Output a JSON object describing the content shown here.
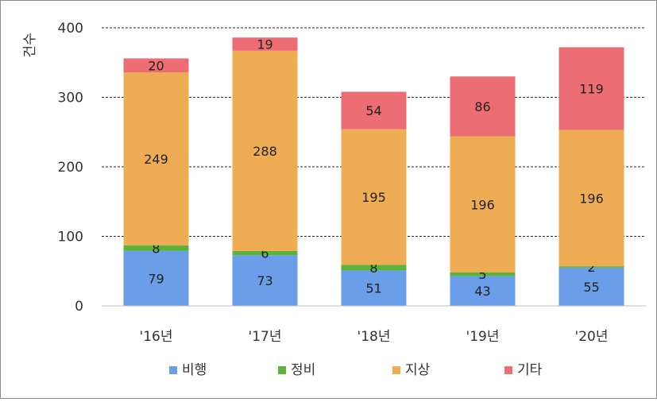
{
  "chart_data": {
    "type": "bar",
    "stacked": true,
    "ylabel": "건수",
    "ylim": [
      0,
      400
    ],
    "yticks": [
      0,
      100,
      200,
      300,
      400
    ],
    "grid": "dashed horizontal",
    "legend_position": "bottom",
    "categories": [
      "'16년",
      "'17년",
      "'18년",
      "'19년",
      "'20년"
    ],
    "series": [
      {
        "name": "비행",
        "color": "#6a9ee8",
        "values": [
          79,
          73,
          51,
          43,
          55
        ]
      },
      {
        "name": "정비",
        "color": "#5bb33a",
        "values": [
          8,
          6,
          8,
          5,
          2
        ]
      },
      {
        "name": "지상",
        "color": "#eeac55",
        "values": [
          249,
          288,
          195,
          196,
          196
        ]
      },
      {
        "name": "기타",
        "color": "#ec6d73",
        "values": [
          20,
          19,
          54,
          86,
          119
        ]
      }
    ]
  }
}
